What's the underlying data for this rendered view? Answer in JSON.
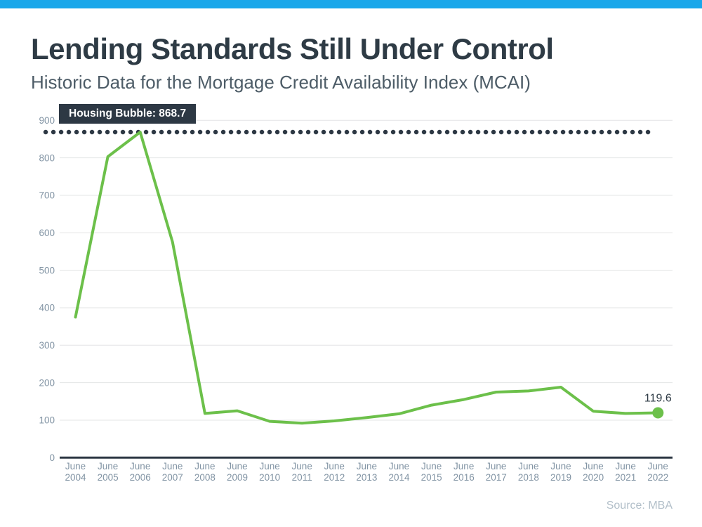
{
  "accent_color": "#19a7ea",
  "header": {
    "title": "Lending Standards Still Under Control",
    "subtitle": "Historic Data for the Mortgage Credit Availability Index (MCAI)"
  },
  "footer": {
    "source": "Source: MBA"
  },
  "colors": {
    "line": "#6cc04a",
    "dark": "#2d3844",
    "gridline": "#e3e4e5",
    "axis_text": "#8294a4",
    "value_label": "#2e3b45",
    "source_text": "#b2bfc9"
  },
  "chart_data": {
    "type": "line",
    "title": "Historic Data for the Mortgage Credit Availability Index (MCAI)",
    "categories": [
      "June 2004",
      "June 2005",
      "June 2006",
      "June 2007",
      "June 2008",
      "June 2009",
      "June 2010",
      "June 2011",
      "June 2012",
      "June 2013",
      "June 2014",
      "June 2015",
      "June 2016",
      "June 2017",
      "June 2018",
      "June 2019",
      "June 2020",
      "June 2021",
      "June 2022"
    ],
    "series": [
      {
        "name": "MCAI",
        "values": [
          375,
          803,
          868.7,
          575,
          118,
          125,
          97,
          92,
          98,
          107,
          117,
          140,
          155,
          175,
          178,
          188,
          124,
          118,
          119.6
        ]
      }
    ],
    "xlabel": "",
    "ylabel": "",
    "ylim": [
      0,
      900
    ],
    "yticks": [
      0,
      100,
      200,
      300,
      400,
      500,
      600,
      700,
      800,
      900
    ],
    "grid": true,
    "legend": "none",
    "annotations": {
      "threshold": {
        "value": 868.7,
        "label": "Housing Bubble: 868.7",
        "style": "dotted"
      },
      "end_label": "119.6"
    }
  }
}
